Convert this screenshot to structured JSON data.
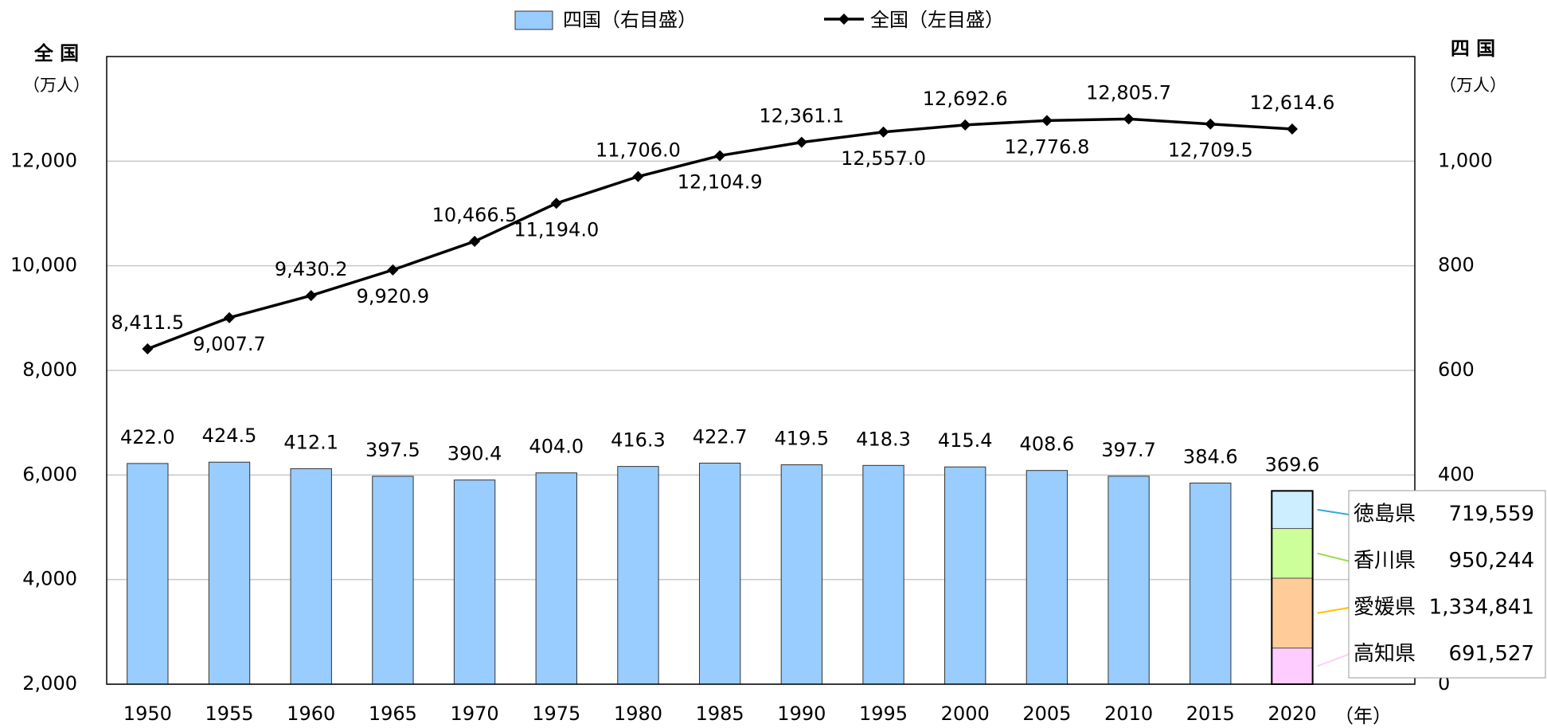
{
  "chart_data": {
    "type": "bar_line",
    "categories": [
      "1950",
      "1955",
      "1960",
      "1965",
      "1970",
      "1975",
      "1980",
      "1985",
      "1990",
      "1995",
      "2000",
      "2005",
      "2010",
      "2015",
      "2020"
    ],
    "series": [
      {
        "name": "四国（右目盛）",
        "type": "bar",
        "axis": "y2",
        "color": "#99ccff",
        "values": [
          422.0,
          424.5,
          412.1,
          397.5,
          390.4,
          404.0,
          416.3,
          422.7,
          419.5,
          418.3,
          415.4,
          408.6,
          397.7,
          384.6,
          369.6
        ],
        "value_labels": [
          "422.0",
          "424.5",
          "412.1",
          "397.5",
          "390.4",
          "404.0",
          "416.3",
          "422.7",
          "419.5",
          "418.3",
          "415.4",
          "408.6",
          "397.7",
          "384.6",
          "369.6"
        ]
      },
      {
        "name": "全国（左目盛）",
        "type": "line",
        "axis": "y",
        "color": "#000000",
        "values": [
          8411.5,
          9007.7,
          9430.2,
          9920.9,
          10466.5,
          11194.0,
          11706.0,
          12104.9,
          12361.1,
          12557.0,
          12692.6,
          12776.8,
          12805.7,
          12709.5,
          12614.6
        ],
        "value_labels": [
          "8,411.5",
          "9,007.7",
          "9,430.2",
          "9,920.9",
          "10,466.5",
          "11,194.0",
          "11,706.0",
          "12,104.9",
          "12,361.1",
          "12,557.0",
          "12,692.6",
          "12,776.8",
          "12,805.7",
          "12,709.5",
          "12,614.6"
        ]
      }
    ],
    "breakdown": {
      "names": [
        "徳島県",
        "香川県",
        "愛媛県",
        "高知県"
      ],
      "values": [
        71.9559,
        95.0244,
        133.4841,
        69.1527
      ],
      "value_labels": [
        "719,559",
        "950,244",
        "1,334,841",
        "691,527"
      ],
      "colors": [
        "#cceeff",
        "#ccff99",
        "#ffcc99",
        "#ffccff"
      ],
      "line_colors": [
        "#33aadd",
        "#99dd55",
        "#ffc000",
        "#ffccff"
      ]
    },
    "y_label": "全 国",
    "y_unit": "（万人）",
    "y2_label": "四 国",
    "y2_unit": "（万人）",
    "x_unit": "（年）",
    "ylim": [
      2000,
      14000
    ],
    "yticks": [
      {
        "value": 2000,
        "label": "2,000"
      },
      {
        "value": 4000,
        "label": "4,000"
      },
      {
        "value": 6000,
        "label": "6,000"
      },
      {
        "value": 8000,
        "label": "8,000"
      },
      {
        "value": 10000,
        "label": "10,000"
      },
      {
        "value": 12000,
        "label": "12,000"
      }
    ],
    "y2lim": [
      0,
      1200
    ],
    "y2ticks": [
      0,
      400,
      600,
      800,
      {
        "value": 1000,
        "label": "1,000"
      }
    ],
    "grid": true
  }
}
